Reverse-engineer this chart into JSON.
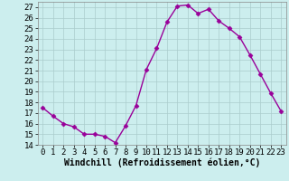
{
  "x": [
    0,
    1,
    2,
    3,
    4,
    5,
    6,
    7,
    8,
    9,
    10,
    11,
    12,
    13,
    14,
    15,
    16,
    17,
    18,
    19,
    20,
    21,
    22,
    23
  ],
  "y": [
    17.5,
    16.7,
    16.0,
    15.7,
    15.0,
    15.0,
    14.8,
    14.2,
    15.8,
    17.7,
    21.1,
    23.1,
    25.6,
    27.1,
    27.2,
    26.4,
    26.8,
    25.7,
    25.0,
    24.2,
    22.5,
    20.7,
    18.9,
    17.2
  ],
  "line_color": "#990099",
  "marker": "D",
  "markersize": 2.5,
  "linewidth": 1.0,
  "xlabel": "Windchill (Refroidissement éolien,°C)",
  "xlim": [
    -0.5,
    23.5
  ],
  "ylim": [
    14,
    27.5
  ],
  "yticks": [
    14,
    15,
    16,
    17,
    18,
    19,
    20,
    21,
    22,
    23,
    24,
    25,
    26,
    27
  ],
  "xticks": [
    0,
    1,
    2,
    3,
    4,
    5,
    6,
    7,
    8,
    9,
    10,
    11,
    12,
    13,
    14,
    15,
    16,
    17,
    18,
    19,
    20,
    21,
    22,
    23
  ],
  "xtick_labels": [
    "0",
    "1",
    "2",
    "3",
    "4",
    "5",
    "6",
    "7",
    "8",
    "9",
    "10",
    "11",
    "12",
    "13",
    "14",
    "15",
    "16",
    "17",
    "18",
    "19",
    "20",
    "21",
    "22",
    "23"
  ],
  "bg_color": "#cceeee",
  "grid_color": "#aacccc",
  "xlabel_fontsize": 7,
  "tick_fontsize": 6.5
}
